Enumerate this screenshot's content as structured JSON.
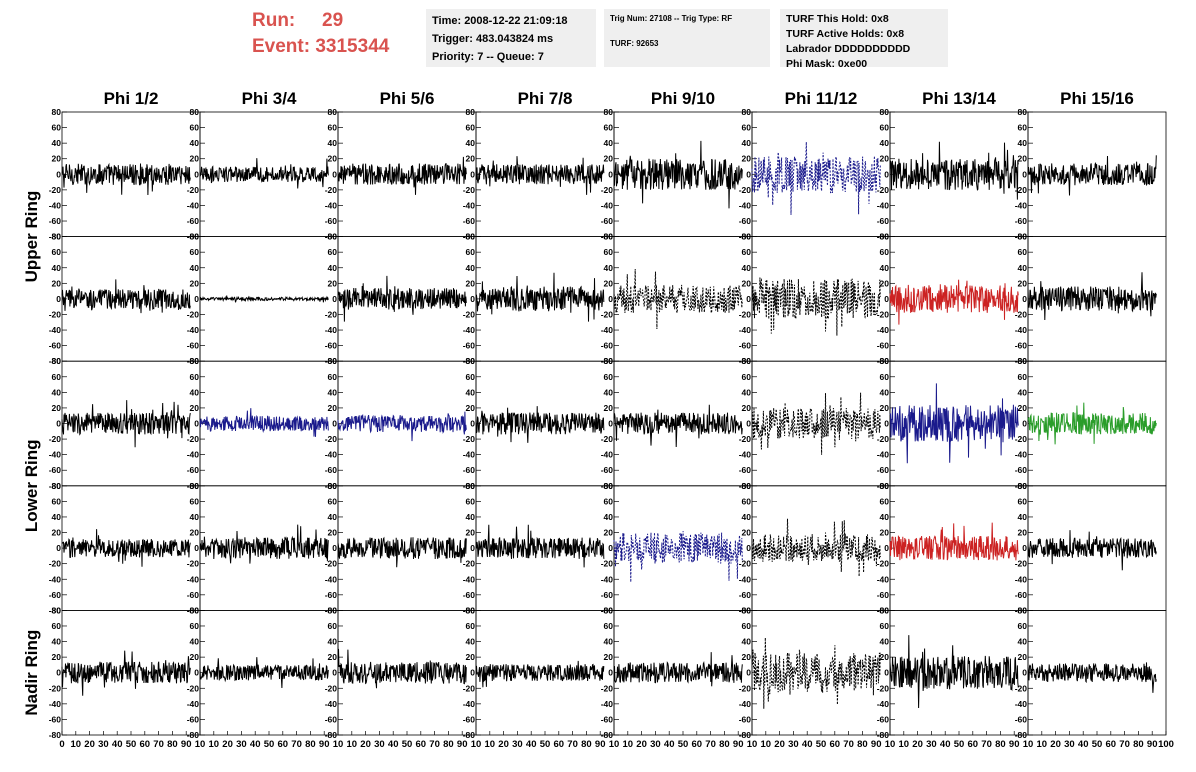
{
  "header": {
    "run_label": "Run:",
    "run_value": "29",
    "event_label": "Event:",
    "event_value": "3315344",
    "time": "Time: 2008-12-22 21:09:18",
    "trigger": "Trigger: 483.043824 ms",
    "priority_queue": "Priority: 7 -- Queue: 7",
    "trig_num_type": "Trig Num: 27108 -- Trig Type: RF",
    "turf": "TURF: 92653",
    "turf_this_hold": "TURF This Hold: 0x8",
    "turf_active_holds": "TURF Active Holds: 0x8",
    "labrador": "Labrador DDDDDDDDDD",
    "phi_mask": "Phi Mask: 0xe00"
  },
  "colors": {
    "run_text": "#d9534f",
    "panel_bg": "#efefef",
    "trace_black": "#000000",
    "trace_blue": "#1a1a8c",
    "trace_red": "#cc2222",
    "trace_green": "#2a9d2a"
  },
  "chart_data": {
    "type": "line",
    "title": "",
    "columns": [
      "Phi 1/2",
      "Phi 3/4",
      "Phi 5/6",
      "Phi 7/8",
      "Phi 9/10",
      "Phi 11/12",
      "Phi 13/14",
      "Phi 15/16"
    ],
    "ring_labels": [
      {
        "text": "Upper Ring",
        "rows": [
          0,
          1
        ]
      },
      {
        "text": "Lower Ring",
        "rows": [
          2,
          3
        ]
      },
      {
        "text": "Nadir Ring",
        "rows": [
          4
        ]
      }
    ],
    "xlim": [
      0,
      100
    ],
    "ylim": [
      -80,
      80
    ],
    "xticks": [
      0,
      10,
      20,
      30,
      40,
      50,
      60,
      70,
      80,
      90,
      100
    ],
    "yticks": [
      -80,
      -60,
      -40,
      -20,
      0,
      20,
      40,
      60,
      80
    ],
    "xtick_labels": [
      "0",
      "10",
      "20",
      "30",
      "40",
      "50",
      "60",
      "70",
      "80",
      "90",
      "10",
      "10",
      "20",
      "30",
      "40",
      "50",
      "60",
      "70",
      "80",
      "90",
      "10",
      "10",
      "20",
      "30",
      "40",
      "50",
      "60",
      "70",
      "80",
      "90",
      "10",
      "10",
      "20",
      "30",
      "40",
      "50",
      "60",
      "70",
      "80",
      "90",
      "10",
      "10",
      "20",
      "30",
      "40",
      "50",
      "60",
      "70",
      "80",
      "90",
      "10",
      "10",
      "20",
      "30",
      "40",
      "50",
      "60",
      "70",
      "80",
      "90",
      "10",
      "10",
      "20",
      "30",
      "40",
      "50",
      "60",
      "70",
      "80",
      "90",
      "10",
      "10",
      "20",
      "30",
      "40",
      "50",
      "60",
      "70",
      "80",
      "90",
      "100"
    ],
    "grid": false,
    "trace_x_range": [
      0,
      93
    ],
    "panels": [
      {
        "row": 0,
        "col": 0,
        "color": "black",
        "style": "solid",
        "amp": 14
      },
      {
        "row": 0,
        "col": 1,
        "color": "black",
        "style": "solid",
        "amp": 10
      },
      {
        "row": 0,
        "col": 2,
        "color": "black",
        "style": "solid",
        "amp": 14
      },
      {
        "row": 0,
        "col": 3,
        "color": "black",
        "style": "solid",
        "amp": 13
      },
      {
        "row": 0,
        "col": 4,
        "color": "black",
        "style": "solid",
        "amp": 20
      },
      {
        "row": 0,
        "col": 5,
        "color": "blue",
        "style": "dashed",
        "amp": 24
      },
      {
        "row": 0,
        "col": 6,
        "color": "black",
        "style": "solid",
        "amp": 20
      },
      {
        "row": 0,
        "col": 7,
        "color": "black",
        "style": "solid",
        "amp": 14
      },
      {
        "row": 1,
        "col": 0,
        "color": "black",
        "style": "solid",
        "amp": 13
      },
      {
        "row": 1,
        "col": 1,
        "color": "black",
        "style": "solid",
        "amp": 2
      },
      {
        "row": 1,
        "col": 2,
        "color": "black",
        "style": "solid",
        "amp": 14
      },
      {
        "row": 1,
        "col": 3,
        "color": "black",
        "style": "solid",
        "amp": 16
      },
      {
        "row": 1,
        "col": 4,
        "color": "black",
        "style": "dashed",
        "amp": 18
      },
      {
        "row": 1,
        "col": 5,
        "color": "black",
        "style": "dashed",
        "amp": 26
      },
      {
        "row": 1,
        "col": 6,
        "color": "red",
        "style": "solid",
        "amp": 18
      },
      {
        "row": 1,
        "col": 7,
        "color": "black",
        "style": "solid",
        "amp": 16
      },
      {
        "row": 2,
        "col": 0,
        "color": "black",
        "style": "solid",
        "amp": 14
      },
      {
        "row": 2,
        "col": 1,
        "color": "blue",
        "style": "solid",
        "amp": 10
      },
      {
        "row": 2,
        "col": 2,
        "color": "blue",
        "style": "solid",
        "amp": 11
      },
      {
        "row": 2,
        "col": 3,
        "color": "black",
        "style": "solid",
        "amp": 14
      },
      {
        "row": 2,
        "col": 4,
        "color": "black",
        "style": "solid",
        "amp": 14
      },
      {
        "row": 2,
        "col": 5,
        "color": "black",
        "style": "dashed",
        "amp": 20
      },
      {
        "row": 2,
        "col": 6,
        "color": "blue",
        "style": "solid",
        "amp": 24
      },
      {
        "row": 2,
        "col": 7,
        "color": "green",
        "style": "solid",
        "amp": 14
      },
      {
        "row": 3,
        "col": 0,
        "color": "black",
        "style": "solid",
        "amp": 12
      },
      {
        "row": 3,
        "col": 1,
        "color": "black",
        "style": "solid",
        "amp": 14
      },
      {
        "row": 3,
        "col": 2,
        "color": "black",
        "style": "solid",
        "amp": 14
      },
      {
        "row": 3,
        "col": 3,
        "color": "black",
        "style": "solid",
        "amp": 14
      },
      {
        "row": 3,
        "col": 4,
        "color": "blue",
        "style": "dashed",
        "amp": 20
      },
      {
        "row": 3,
        "col": 5,
        "color": "black",
        "style": "dashed",
        "amp": 18
      },
      {
        "row": 3,
        "col": 6,
        "color": "red",
        "style": "solid",
        "amp": 16
      },
      {
        "row": 3,
        "col": 7,
        "color": "black",
        "style": "solid",
        "amp": 13
      },
      {
        "row": 4,
        "col": 0,
        "color": "black",
        "style": "solid",
        "amp": 14
      },
      {
        "row": 4,
        "col": 1,
        "color": "black",
        "style": "solid",
        "amp": 10
      },
      {
        "row": 4,
        "col": 2,
        "color": "black",
        "style": "solid",
        "amp": 14
      },
      {
        "row": 4,
        "col": 3,
        "color": "black",
        "style": "solid",
        "amp": 11
      },
      {
        "row": 4,
        "col": 4,
        "color": "black",
        "style": "solid",
        "amp": 13
      },
      {
        "row": 4,
        "col": 5,
        "color": "black",
        "style": "dashed",
        "amp": 26
      },
      {
        "row": 4,
        "col": 6,
        "color": "black",
        "style": "solid",
        "amp": 22
      },
      {
        "row": 4,
        "col": 7,
        "color": "black",
        "style": "solid",
        "amp": 12
      }
    ]
  }
}
